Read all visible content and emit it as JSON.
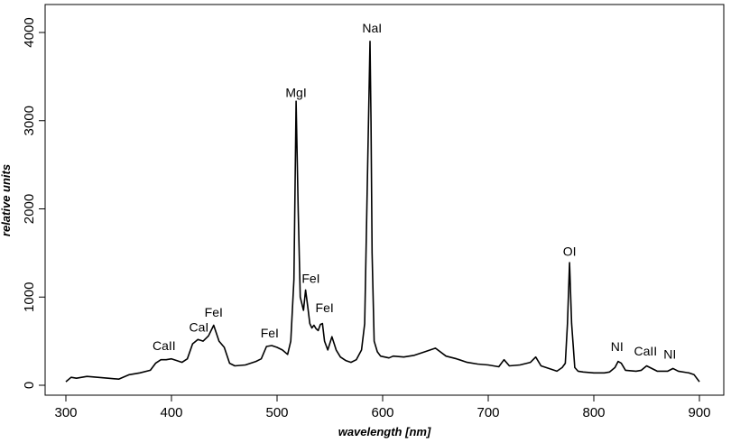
{
  "chart_data": {
    "type": "line",
    "title": "",
    "xlabel": "wavelength [nm]",
    "ylabel": "relative units",
    "xlim": [
      300,
      900
    ],
    "ylim": [
      0,
      4000
    ],
    "x_ticks": [
      "300",
      "400",
      "500",
      "600",
      "700",
      "800",
      "900"
    ],
    "y_ticks": [
      "0",
      "1000",
      "2000",
      "3000",
      "4000"
    ],
    "grid": false,
    "series": [
      {
        "color": "#000000",
        "x": [
          300,
          305,
          310,
          320,
          330,
          340,
          350,
          360,
          370,
          380,
          385,
          390,
          395,
          400,
          405,
          410,
          415,
          420,
          425,
          430,
          435,
          440,
          445,
          450,
          455,
          460,
          470,
          480,
          485,
          490,
          495,
          500,
          505,
          510,
          513,
          516,
          518,
          520,
          522,
          525,
          527,
          529,
          531,
          533,
          535,
          537,
          539,
          541,
          543,
          545,
          548,
          552,
          556,
          560,
          565,
          570,
          575,
          580,
          583,
          586,
          588,
          589,
          590,
          592,
          595,
          598,
          602,
          606,
          610,
          620,
          630,
          640,
          650,
          660,
          670,
          680,
          690,
          700,
          710,
          715,
          720,
          730,
          740,
          745,
          750,
          760,
          765,
          770,
          773,
          775,
          777,
          779,
          782,
          785,
          790,
          800,
          810,
          815,
          820,
          823,
          826,
          830,
          840,
          845,
          850,
          860,
          870,
          875,
          880,
          890,
          895,
          900
        ],
        "y": [
          40,
          90,
          80,
          100,
          90,
          80,
          70,
          120,
          140,
          170,
          250,
          290,
          290,
          300,
          280,
          260,
          300,
          470,
          520,
          500,
          560,
          680,
          500,
          430,
          250,
          220,
          230,
          270,
          300,
          440,
          450,
          430,
          400,
          350,
          500,
          1200,
          3220,
          2000,
          1000,
          850,
          1080,
          900,
          700,
          650,
          680,
          640,
          620,
          690,
          700,
          500,
          400,
          550,
          400,
          320,
          280,
          260,
          290,
          400,
          700,
          2600,
          3900,
          3000,
          1500,
          500,
          380,
          330,
          320,
          310,
          330,
          320,
          340,
          380,
          420,
          330,
          300,
          260,
          240,
          230,
          210,
          290,
          220,
          230,
          260,
          320,
          220,
          180,
          160,
          200,
          250,
          700,
          1390,
          700,
          200,
          160,
          150,
          140,
          140,
          150,
          200,
          270,
          250,
          170,
          160,
          170,
          220,
          160,
          160,
          190,
          160,
          140,
          120,
          40
        ]
      }
    ],
    "annotations": [
      {
        "text": "CaII",
        "x": 393,
        "y": 400
      },
      {
        "text": "CaI",
        "x": 426,
        "y": 610
      },
      {
        "text": "FeI",
        "x": 440,
        "y": 780
      },
      {
        "text": "FeI",
        "x": 493,
        "y": 540
      },
      {
        "text": "MgI",
        "x": 518,
        "y": 3270
      },
      {
        "text": "FeI",
        "x": 532,
        "y": 1160
      },
      {
        "text": "FeI",
        "x": 545,
        "y": 830
      },
      {
        "text": "NaI",
        "x": 590,
        "y": 4000
      },
      {
        "text": "OI",
        "x": 777,
        "y": 1470
      },
      {
        "text": "NI",
        "x": 822,
        "y": 390
      },
      {
        "text": "CaII",
        "x": 849,
        "y": 340
      },
      {
        "text": "NI",
        "x": 872,
        "y": 300
      }
    ]
  }
}
